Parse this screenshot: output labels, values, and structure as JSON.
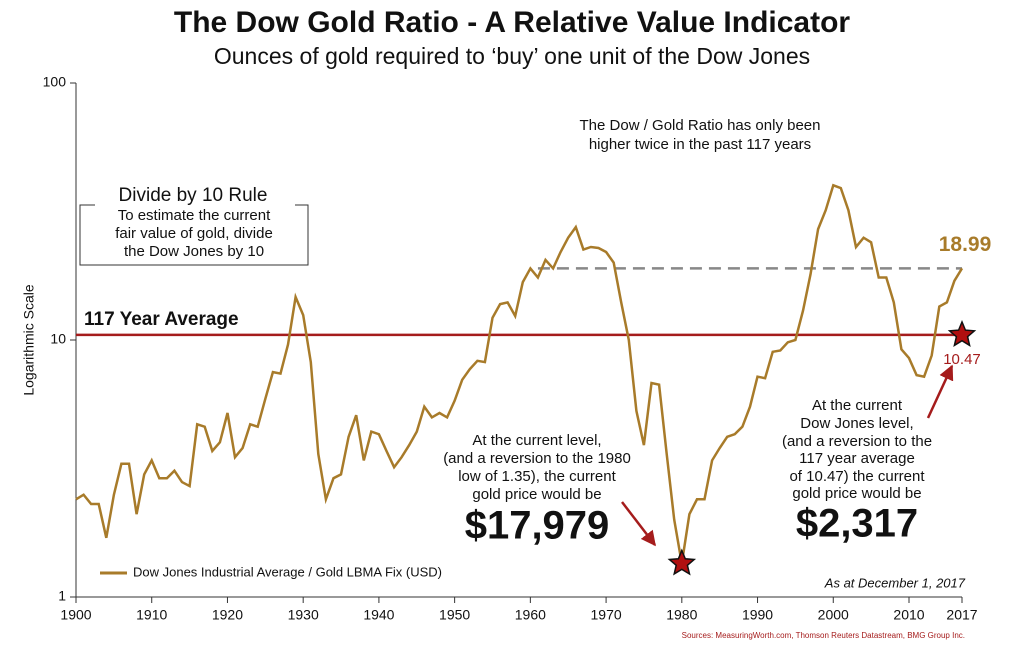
{
  "chart_data": {
    "type": "line",
    "title": "The Dow Gold Ratio - A Relative Value Indicator",
    "subtitle": "Ounces of gold required to ‘buy’ one unit of the Dow Jones",
    "y_label": "Logarithmic Scale",
    "log_scale": "y",
    "xlim": [
      1900,
      2017
    ],
    "xticks": [
      1900,
      1910,
      1920,
      1930,
      1940,
      1950,
      1960,
      1970,
      1980,
      1990,
      2000,
      2010,
      2017
    ],
    "ylim": [
      1,
      100
    ],
    "yticks": [
      1,
      10,
      100
    ],
    "x": [
      1900,
      1901,
      1902,
      1903,
      1904,
      1905,
      1906,
      1907,
      1908,
      1909,
      1910,
      1911,
      1912,
      1913,
      1914,
      1915,
      1916,
      1917,
      1918,
      1919,
      1920,
      1921,
      1922,
      1923,
      1924,
      1925,
      1926,
      1927,
      1928,
      1929,
      1930,
      1931,
      1932,
      1933,
      1934,
      1935,
      1936,
      1937,
      1938,
      1939,
      1940,
      1941,
      1942,
      1943,
      1944,
      1945,
      1946,
      1947,
      1948,
      1949,
      1950,
      1951,
      1952,
      1953,
      1954,
      1955,
      1956,
      1957,
      1958,
      1959,
      1960,
      1961,
      1962,
      1963,
      1964,
      1965,
      1966,
      1967,
      1968,
      1969,
      1970,
      1971,
      1972,
      1973,
      1974,
      1975,
      1976,
      1977,
      1978,
      1979,
      1980,
      1981,
      1982,
      1983,
      1984,
      1985,
      1986,
      1987,
      1988,
      1989,
      1990,
      1991,
      1992,
      1993,
      1994,
      1995,
      1996,
      1997,
      1998,
      1999,
      2000,
      2001,
      2002,
      2003,
      2004,
      2005,
      2006,
      2007,
      2008,
      2009,
      2010,
      2011,
      2012,
      2013,
      2014,
      2015,
      2016,
      2017
    ],
    "series": [
      {
        "name": "Dow Jones Industrial Average / Gold LBMA Fix (USD)",
        "color": "#a87b2a",
        "values": [
          2.4,
          2.5,
          2.3,
          2.3,
          1.7,
          2.5,
          3.3,
          3.3,
          2.1,
          3.0,
          3.4,
          2.9,
          2.9,
          3.1,
          2.8,
          2.7,
          4.7,
          4.6,
          3.7,
          4.0,
          5.2,
          3.5,
          3.8,
          4.7,
          4.6,
          5.9,
          7.5,
          7.4,
          9.6,
          14.7,
          12.5,
          8.2,
          3.6,
          2.4,
          2.9,
          3.0,
          4.2,
          5.1,
          3.4,
          4.4,
          4.3,
          3.7,
          3.2,
          3.5,
          3.9,
          4.4,
          5.5,
          5.0,
          5.2,
          5.0,
          5.8,
          7.0,
          7.7,
          8.3,
          8.2,
          12.2,
          13.8,
          14.0,
          12.4,
          16.8,
          19.0,
          17.5,
          20.5,
          19.0,
          22.0,
          25.0,
          27.5,
          22.5,
          23.0,
          22.8,
          22.0,
          20.0,
          14.0,
          10.0,
          5.3,
          3.9,
          6.8,
          6.7,
          3.6,
          2.0,
          1.35,
          2.1,
          2.4,
          2.4,
          3.4,
          3.8,
          4.2,
          4.3,
          4.6,
          5.5,
          7.2,
          7.1,
          9.0,
          9.1,
          9.8,
          10.0,
          13.0,
          18.0,
          27.0,
          32.0,
          40.0,
          39.0,
          32.0,
          23.0,
          25.0,
          24.0,
          17.5,
          17.5,
          14.0,
          9.2,
          8.5,
          7.3,
          7.2,
          8.7,
          13.5,
          14.0,
          17.0,
          18.99
        ]
      }
    ],
    "average_line": {
      "value": 10.47,
      "label": "117 Year Average",
      "color": "#a51c1c"
    },
    "current_line": {
      "value": 18.99,
      "start": 1961,
      "color": "#888888"
    },
    "stars": [
      {
        "x": 1980,
        "value": 1.35
      },
      {
        "x": 2017,
        "value": 10.47
      }
    ],
    "star_color": "#b01010",
    "note_top": [
      "The Dow / Gold Ratio has only been",
      "higher twice in the past 117 years"
    ],
    "rule_box": {
      "title": "Divide by 10 Rule",
      "lines": [
        "To estimate the current",
        "fair value of gold, divide",
        "the Dow Jones by 10"
      ]
    },
    "note_left": {
      "lines": [
        "At the current level,",
        "(and a reversion to the 1980",
        "low of 1.35), the current",
        "gold price would be"
      ],
      "price": "$17,979"
    },
    "note_right": {
      "lines": [
        "At the current",
        "Dow Jones level,",
        "(and a reversion to the",
        "117 year average",
        "of 10.47) the current",
        "gold price would be"
      ],
      "price": "$2,317"
    },
    "as_at": "As at December 1, 2017",
    "sources": "Sources: MeasuringWorth.com, Thomson Reuters Datastream, BMG Group Inc."
  }
}
